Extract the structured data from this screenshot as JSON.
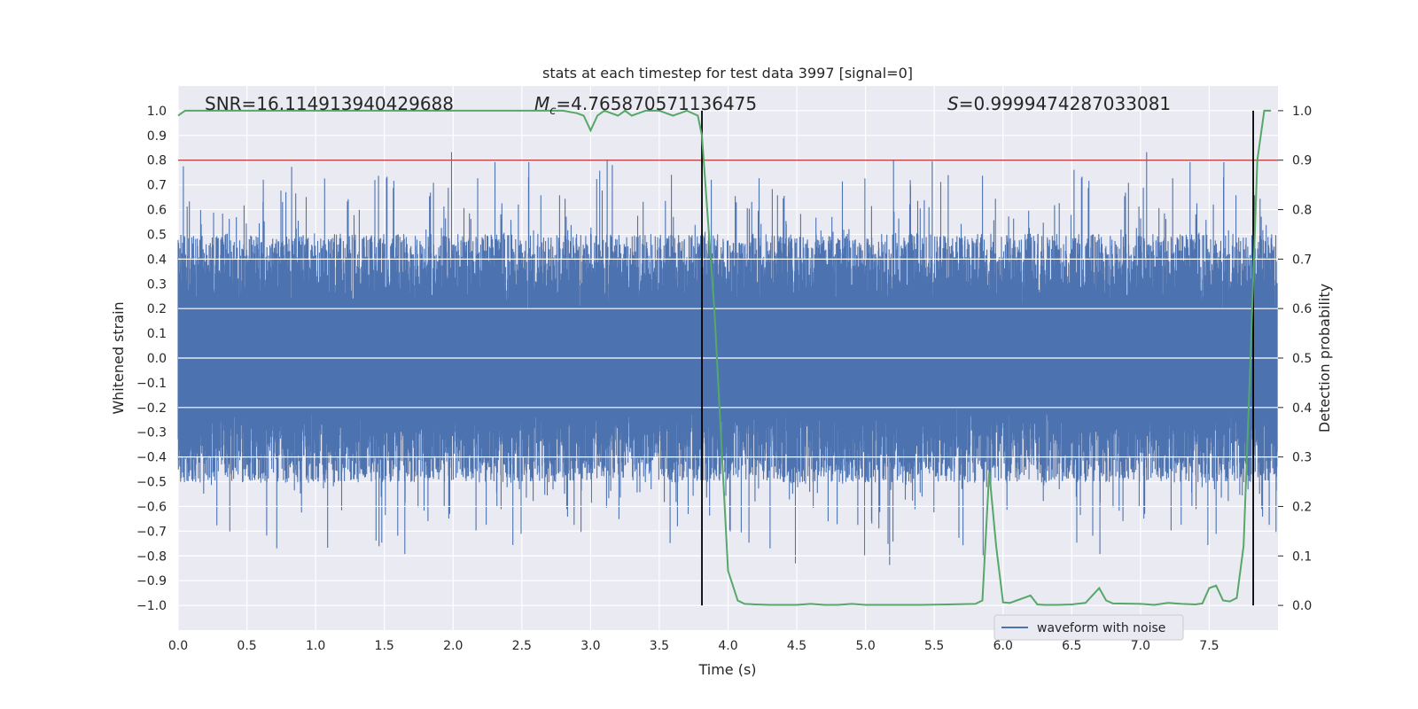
{
  "chart_data": {
    "type": "line",
    "title": "stats at each timestep for test data 3997 [signal=0]",
    "xlabel": "Time (s)",
    "ylabel": "Whitened strain",
    "y2label": "Detection probability",
    "xlim": [
      0.0,
      8.0
    ],
    "ylim": [
      -1.1,
      1.1
    ],
    "y2lim": [
      -0.05,
      1.05
    ],
    "x_ticks": [
      "0.0",
      "0.5",
      "1.0",
      "1.5",
      "2.0",
      "2.5",
      "3.0",
      "3.5",
      "4.0",
      "4.5",
      "5.0",
      "5.5",
      "6.0",
      "6.5",
      "7.0",
      "7.5"
    ],
    "y_ticks": [
      "1.0",
      "0.9",
      "0.8",
      "0.7",
      "0.6",
      "0.5",
      "0.4",
      "0.3",
      "0.2",
      "0.1",
      "0.0",
      "-0.1",
      "-0.2",
      "-0.3",
      "-0.4",
      "-0.5",
      "-0.6",
      "-0.7",
      "-0.8",
      "-0.9",
      "-1.0"
    ],
    "y2_ticks": [
      "1.0",
      "0.9",
      "0.8",
      "0.7",
      "0.6",
      "0.5",
      "0.4",
      "0.3",
      "0.2",
      "0.1",
      "0.0"
    ],
    "grid": true,
    "legend_position": "bottom-right",
    "annotations": {
      "snr": "SNR=16.114913940429688",
      "mc_symbol": "M",
      "mc_sub": "c",
      "mc_value": "=4.765870571136475",
      "s_symbol": "S",
      "s_value": "=0.9999474287033081"
    },
    "threshold_line": {
      "y2": 0.9,
      "color": "#c44e52"
    },
    "vertical_lines": [
      3.81,
      7.82
    ],
    "series": [
      {
        "name": "waveform with noise",
        "color": "#4c72b0",
        "kind": "noise",
        "envelope": {
          "typical_abs": 0.42,
          "max_abs": 1.0,
          "min": -1.0,
          "max": 0.96
        }
      },
      {
        "name": "",
        "color": "#55a868",
        "axis": "y2",
        "x": [
          0.0,
          0.05,
          0.1,
          0.2,
          0.5,
          1.0,
          1.5,
          2.0,
          2.5,
          2.8,
          2.9,
          2.95,
          3.0,
          3.05,
          3.1,
          3.2,
          3.25,
          3.3,
          3.4,
          3.5,
          3.6,
          3.7,
          3.78,
          3.81,
          3.9,
          4.0,
          4.07,
          4.12,
          4.2,
          4.3,
          4.5,
          4.6,
          4.7,
          4.8,
          4.9,
          5.0,
          5.2,
          5.4,
          5.6,
          5.8,
          5.85,
          5.9,
          5.95,
          6.0,
          6.05,
          6.1,
          6.2,
          6.25,
          6.3,
          6.4,
          6.5,
          6.6,
          6.7,
          6.75,
          6.8,
          7.0,
          7.1,
          7.2,
          7.3,
          7.4,
          7.45,
          7.5,
          7.55,
          7.6,
          7.65,
          7.7,
          7.75,
          7.8,
          7.85,
          7.9,
          7.95
        ],
        "y": [
          0.99,
          1.0,
          1.0,
          1.0,
          1.0,
          1.0,
          1.0,
          1.0,
          1.0,
          1.0,
          0.995,
          0.99,
          0.96,
          0.99,
          1.0,
          0.99,
          1.0,
          0.99,
          1.0,
          1.0,
          0.99,
          1.0,
          0.99,
          0.95,
          0.6,
          0.07,
          0.01,
          0.003,
          0.002,
          0.001,
          0.001,
          0.003,
          0.001,
          0.001,
          0.003,
          0.001,
          0.001,
          0.001,
          0.002,
          0.003,
          0.01,
          0.27,
          0.12,
          0.006,
          0.005,
          0.01,
          0.02,
          0.002,
          0.001,
          0.001,
          0.002,
          0.005,
          0.035,
          0.01,
          0.004,
          0.003,
          0.001,
          0.005,
          0.003,
          0.002,
          0.004,
          0.035,
          0.04,
          0.01,
          0.008,
          0.015,
          0.12,
          0.5,
          0.9,
          1.0,
          1.0
        ]
      }
    ]
  }
}
